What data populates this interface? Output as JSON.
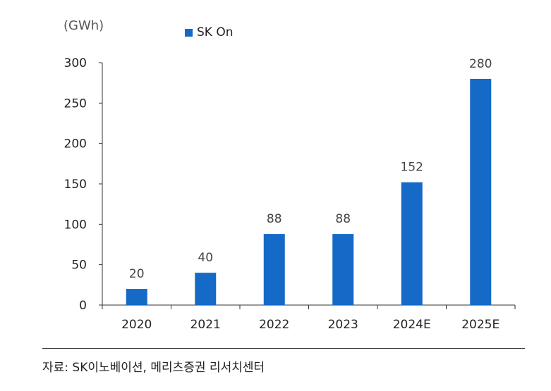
{
  "chart_data": {
    "type": "bar",
    "unit": "(GWh)",
    "categories": [
      "2020",
      "2021",
      "2022",
      "2023",
      "2024E",
      "2025E"
    ],
    "series": [
      {
        "name": "SK On",
        "values": [
          20,
          40,
          88,
          88,
          152,
          280
        ],
        "color": "#1569C7"
      }
    ],
    "data_labels": [
      "20",
      "40",
      "88",
      "88",
      "152",
      "280"
    ],
    "yticks": [
      "0",
      "50",
      "100",
      "150",
      "200",
      "250",
      "300"
    ],
    "ylim": [
      0,
      300
    ],
    "grid": false,
    "legend_position": "top"
  },
  "source": "자료: SK이노베이션, 메리츠증권 리서치센터"
}
